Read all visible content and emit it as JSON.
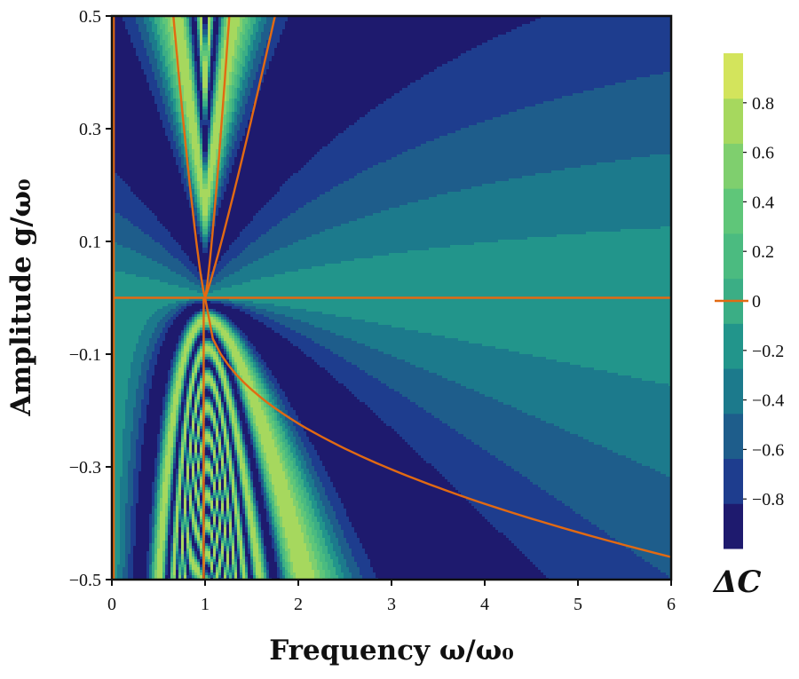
{
  "chart_data": {
    "type": "heatmap",
    "title": "",
    "xlabel": "Frequency ω/ω₀",
    "ylabel": "Amplitude g/ω₀",
    "xlim": [
      0,
      6
    ],
    "ylim": [
      -0.5,
      0.5
    ],
    "xticks": [
      "0",
      "1",
      "2",
      "3",
      "4",
      "5",
      "6"
    ],
    "yticks": [
      "−0.5",
      "−0.3",
      "−0.1",
      "0.1",
      "0.3",
      "0.5"
    ],
    "colorbar": {
      "label": "ΔC",
      "range": [
        -1,
        1
      ],
      "levels": [
        -1.0,
        -0.8,
        -0.6,
        -0.4,
        -0.2,
        0.0,
        0.2,
        0.4,
        0.6,
        0.8,
        1.0
      ],
      "colors": [
        "#1e1a6e",
        "#1e3d8e",
        "#1e5d8b",
        "#1c7a8c",
        "#22958b",
        "#3bae85",
        "#4bbb80",
        "#5fc679",
        "#7fcf6e",
        "#a6d85e",
        "#d3e45c"
      ],
      "tick_labels": [
        "−0.8",
        "−0.6",
        "−0.4",
        "−0.2",
        "0",
        "0.2",
        "0.4",
        "0.6",
        "0.8"
      ],
      "zero_line_color": "#e26a12"
    },
    "zero_contour_color": "#e26a12",
    "grid": false
  }
}
